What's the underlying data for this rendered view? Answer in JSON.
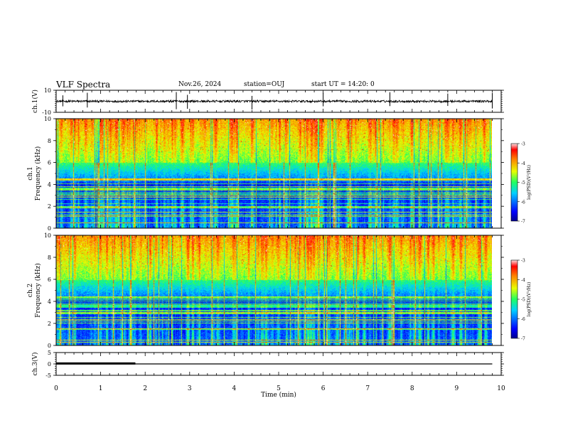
{
  "header": {
    "title": "VLF Spectra",
    "date": "Nov.26, 2024",
    "station": "station=OUJ",
    "start": "start UT = 14:20: 0"
  },
  "chart_data": [
    {
      "type": "line",
      "panel": "ch1-waveform",
      "ylabel": "ch.1(V)",
      "ylim": [
        -10,
        10
      ],
      "yticks": [
        "10",
        "-10"
      ],
      "baseline": 0,
      "description_values": {
        "noise_amplitude_v": 1.0,
        "spikes_at_min": [
          0.15,
          0.7,
          2.7,
          2.95,
          4.4,
          6.0,
          7.5,
          8.8,
          9.8
        ]
      }
    },
    {
      "type": "heatmap",
      "panel": "ch1-spectrogram",
      "ylabel": "Frequency (kHz)",
      "ylabel2": "ch.1",
      "ylim": [
        0,
        10
      ],
      "yticks": [
        "0",
        "2",
        "4",
        "6",
        "8",
        "10"
      ],
      "colorbar": {
        "label": "log(PSD)(V²/Hz)",
        "range": [
          -7,
          -3
        ],
        "ticks": [
          "-3",
          "-4",
          "-5",
          "-6",
          "-7"
        ]
      }
    },
    {
      "type": "heatmap",
      "panel": "ch2-spectrogram",
      "ylabel": "Frequency (kHz)",
      "ylabel2": "ch.2",
      "ylim": [
        0,
        10
      ],
      "yticks": [
        "0",
        "2",
        "4",
        "6",
        "8",
        "10"
      ],
      "colorbar": {
        "label": "log(PSD)(V²/Hz)",
        "range": [
          -7,
          -3
        ],
        "ticks": [
          "-3",
          "-4",
          "-5",
          "-6",
          "-7"
        ]
      }
    },
    {
      "type": "line",
      "panel": "ch3-waveform",
      "ylabel": "ch.3(V)",
      "ylim": [
        -5,
        5
      ],
      "yticks": [
        "5",
        "0",
        "-5"
      ],
      "x": [
        0,
        1.78,
        1.78,
        9.8
      ],
      "y": [
        0.2,
        0.2,
        0.0,
        0.0
      ]
    }
  ],
  "xaxis": {
    "label": "Time (min)",
    "xlim": [
      0,
      10
    ],
    "ticks": [
      "0",
      "1",
      "2",
      "3",
      "4",
      "5",
      "6",
      "7",
      "8",
      "9",
      "10"
    ],
    "data_end_min": 9.8
  }
}
